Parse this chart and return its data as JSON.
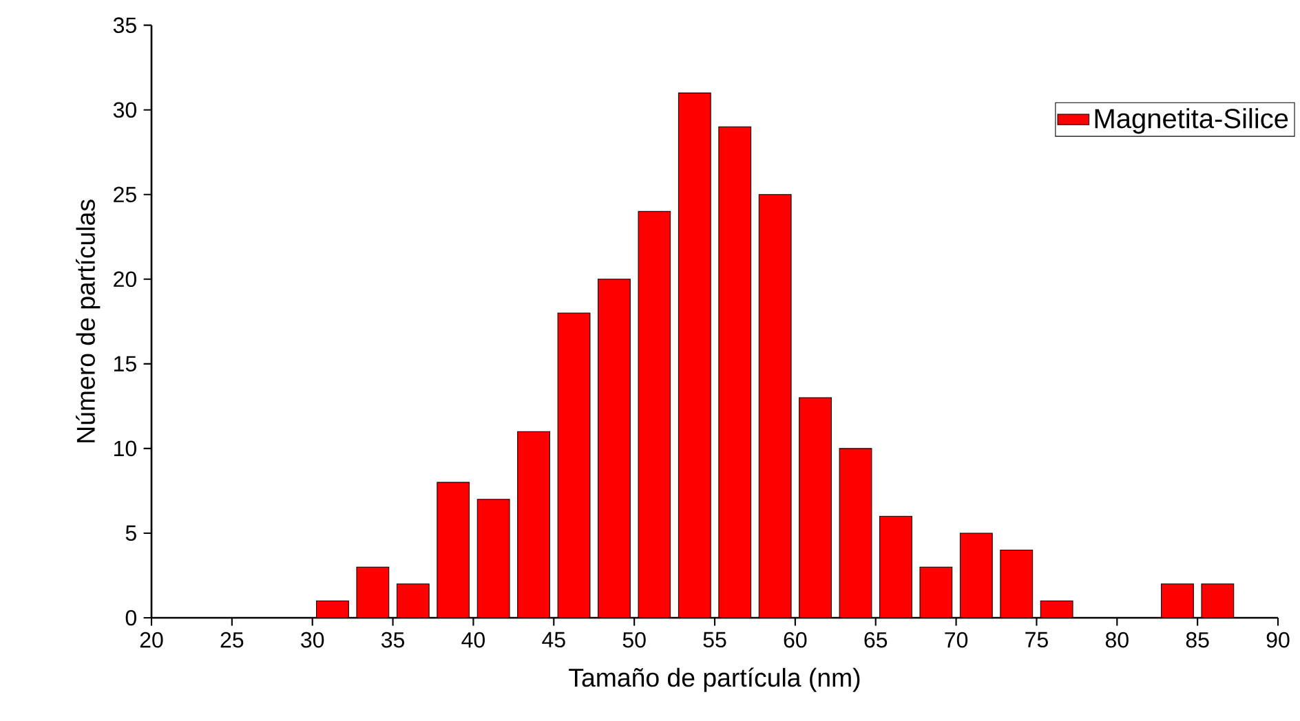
{
  "chart_data": {
    "type": "histogram",
    "xlabel": "Tamaño de partícula (nm)",
    "ylabel": "Número de partículas",
    "bins": [
      30,
      32.5,
      35,
      37.5,
      40,
      42.5,
      45,
      47.5,
      50,
      52.5,
      55,
      57.5,
      60,
      62.5,
      65,
      67.5,
      70,
      72.5,
      75,
      77.5,
      80,
      82.5,
      85,
      87.5
    ],
    "series": [
      {
        "name": "Magnetita-Silice",
        "color": "#ff0000",
        "values": [
          1,
          3,
          2,
          8,
          7,
          11,
          18,
          20,
          24,
          31,
          29,
          25,
          13,
          10,
          6,
          3,
          5,
          4,
          1,
          0,
          0,
          2,
          2
        ]
      }
    ],
    "xlim": [
      20,
      90
    ],
    "ylim": [
      0,
      35
    ],
    "xticks": [
      20,
      25,
      30,
      35,
      40,
      45,
      50,
      55,
      60,
      65,
      70,
      75,
      80,
      85,
      90
    ],
    "yticks": [
      0,
      5,
      10,
      15,
      20,
      25,
      30,
      35
    ],
    "legend": "top right",
    "grid": false
  }
}
